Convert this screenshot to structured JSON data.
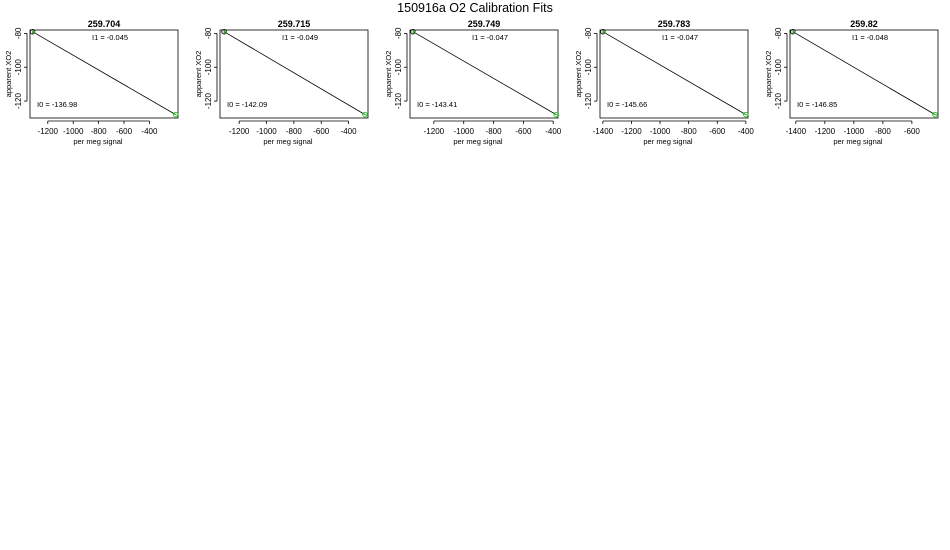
{
  "page_title": "150916a   O2 Calibration Fits",
  "colors": {
    "fit_line": "#000000",
    "point_open": "#000000",
    "point_green": "#22bb22"
  },
  "chart_data": [
    {
      "type": "scatter",
      "title": "259.704",
      "xlabel": "per meg signal",
      "ylabel": "apparent XO2",
      "xlim": [
        -1340,
        -175
      ],
      "ylim": [
        -130,
        -78
      ],
      "xticks": [
        -1200,
        -1000,
        -800,
        -600,
        -400
      ],
      "yticks": [
        -80,
        -100,
        -120
      ],
      "annotations": {
        "slope": "I1 =  -0.045",
        "intercept": "I0 =  -136.98"
      },
      "points": [
        {
          "x": -1320,
          "y": -79,
          "color": "black"
        },
        {
          "x": -193,
          "y": -128,
          "color": "green"
        }
      ],
      "fit_line": {
        "from": [
          -1320,
          -79
        ],
        "to": [
          -193,
          -128
        ]
      }
    },
    {
      "type": "scatter",
      "title": "259.715",
      "xlabel": "per meg signal",
      "ylabel": "apparent XO2",
      "xlim": [
        -1340,
        -258
      ],
      "ylim": [
        -130,
        -78
      ],
      "xticks": [
        -1200,
        -1000,
        -800,
        -600,
        -400
      ],
      "yticks": [
        -80,
        -100,
        -120
      ],
      "annotations": {
        "slope": "I1 =  -0.049",
        "intercept": "I0 =  -142.09"
      },
      "points": [
        {
          "x": -1310,
          "y": -79,
          "color": "black"
        },
        {
          "x": -280,
          "y": -128,
          "color": "green"
        }
      ],
      "fit_line": {
        "from": [
          -1310,
          -79
        ],
        "to": [
          -280,
          -128
        ]
      }
    },
    {
      "type": "scatter",
      "title": "259.749",
      "xlabel": "per meg signal",
      "ylabel": "apparent XO2",
      "xlim": [
        -1360,
        -368
      ],
      "ylim": [
        -130,
        -78
      ],
      "xticks": [
        -1200,
        -1000,
        -800,
        -600,
        -400
      ],
      "yticks": [
        -80,
        -100,
        -120
      ],
      "annotations": {
        "slope": "I1 =  -0.047",
        "intercept": "I0 =  -143.41"
      },
      "points": [
        {
          "x": -1340,
          "y": -79,
          "color": "black"
        },
        {
          "x": -380,
          "y": -128,
          "color": "green"
        }
      ],
      "fit_line": {
        "from": [
          -1340,
          -79
        ],
        "to": [
          -380,
          -128
        ]
      }
    },
    {
      "type": "scatter",
      "title": "259.783",
      "xlabel": "per meg signal",
      "ylabel": "apparent XO2",
      "xlim": [
        -1420,
        -385
      ],
      "ylim": [
        -130,
        -78
      ],
      "xticks": [
        -1400,
        -1200,
        -1000,
        -800,
        -600,
        -400
      ],
      "yticks": [
        -80,
        -100,
        -120
      ],
      "annotations": {
        "slope": "I1 =  -0.047",
        "intercept": "I0 =  -145.66"
      },
      "points": [
        {
          "x": -1400,
          "y": -79,
          "color": "black"
        },
        {
          "x": -400,
          "y": -128,
          "color": "green"
        }
      ],
      "fit_line": {
        "from": [
          -1400,
          -79
        ],
        "to": [
          -400,
          -128
        ]
      }
    },
    {
      "type": "scatter",
      "title": "259.82",
      "xlabel": "per meg signal",
      "ylabel": "apparent XO2",
      "xlim": [
        -1440,
        -420
      ],
      "ylim": [
        -130,
        -78
      ],
      "xticks": [
        -1400,
        -1200,
        -1000,
        -800,
        -600
      ],
      "yticks": [
        -80,
        -100,
        -120
      ],
      "annotations": {
        "slope": "I1 =  -0.048",
        "intercept": "I0 =  -146.85"
      },
      "points": [
        {
          "x": -1420,
          "y": -79,
          "color": "black"
        },
        {
          "x": -440,
          "y": -128,
          "color": "green"
        }
      ],
      "fit_line": {
        "from": [
          -1420,
          -79
        ],
        "to": [
          -440,
          -128
        ]
      }
    }
  ]
}
